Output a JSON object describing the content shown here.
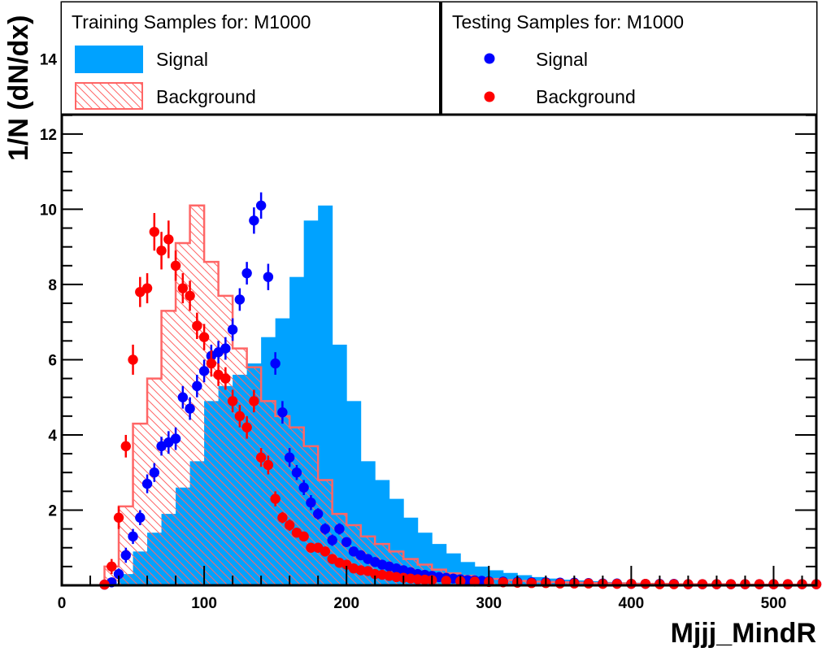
{
  "chart_data": {
    "type": "histogram",
    "xlabel": "Mjjj_MindR",
    "ylabel": "1/N (dN/dx)",
    "xlim": [
      0,
      530
    ],
    "ylim": [
      0,
      15.5
    ],
    "x_ticks": [
      0,
      100,
      200,
      300,
      400,
      500
    ],
    "y_ticks": [
      2,
      4,
      6,
      8,
      10,
      12,
      14
    ],
    "bin_width": 10,
    "legend": {
      "training_header": "Training Samples for: M1000",
      "testing_header": "Testing Samples for: M1000",
      "training_signal": "Signal",
      "training_background": "Background",
      "testing_signal": "Signal",
      "testing_background": "Background"
    },
    "colors": {
      "signal_fill": "#00a2ff",
      "background_line": "#ff6666",
      "signal_points": "#0000ff",
      "background_points": "#ff0000"
    },
    "series": [
      {
        "name": "Signal",
        "kind": "training-histogram",
        "bin_lefts": [
          0,
          10,
          20,
          30,
          40,
          50,
          60,
          70,
          80,
          90,
          100,
          110,
          120,
          130,
          140,
          150,
          160,
          170,
          180,
          190,
          200,
          210,
          220,
          230,
          240,
          250,
          260,
          270,
          280,
          290,
          300,
          310,
          320,
          330,
          340,
          350,
          360,
          370,
          380,
          390,
          400,
          410,
          420,
          430,
          440,
          450,
          460,
          470,
          480,
          490,
          500,
          510,
          520
        ],
        "values": [
          0,
          0,
          0,
          0.05,
          0.3,
          0.9,
          1.4,
          1.9,
          2.6,
          3.3,
          4.9,
          5.3,
          5.6,
          5.9,
          6.6,
          7.1,
          8.2,
          9.7,
          10.1,
          6.4,
          4.9,
          3.3,
          2.8,
          2.3,
          1.8,
          1.4,
          1.1,
          0.85,
          0.62,
          0.5,
          0.4,
          0.33,
          0.27,
          0.22,
          0.18,
          0.15,
          0.13,
          0.11,
          0.09,
          0.08,
          0.07,
          0.06,
          0.05,
          0.05,
          0.04,
          0.04,
          0.03,
          0.03,
          0.03,
          0.02,
          0.02,
          0.02,
          0.02
        ]
      },
      {
        "name": "Background",
        "kind": "training-histogram",
        "bin_lefts": [
          0,
          10,
          20,
          30,
          40,
          50,
          60,
          70,
          80,
          90,
          100,
          110,
          120,
          130,
          140,
          150,
          160,
          170,
          180,
          190,
          200,
          210,
          220,
          230,
          240,
          250,
          260,
          270,
          280,
          290,
          300,
          310,
          320,
          330,
          340,
          350,
          360,
          370,
          380,
          390,
          400,
          410,
          420,
          430,
          440,
          450,
          460,
          470,
          480,
          490,
          500,
          510,
          520
        ],
        "values": [
          0,
          0,
          0,
          0.5,
          2.1,
          4.3,
          5.5,
          7.3,
          9.1,
          10.1,
          8.6,
          7.7,
          6.3,
          5.8,
          4.9,
          4.5,
          4.2,
          3.7,
          2.8,
          1.9,
          1.6,
          1.3,
          1.1,
          0.9,
          0.7,
          0.55,
          0.42,
          0.32,
          0.25,
          0.2,
          0.17,
          0.14,
          0.12,
          0.1,
          0.09,
          0.08,
          0.07,
          0.06,
          0.05,
          0.05,
          0.04,
          0.04,
          0.04,
          0.03,
          0.03,
          0.03,
          0.03,
          0.02,
          0.02,
          0.02,
          0.02,
          0.02,
          0.02
        ]
      },
      {
        "name": "Signal",
        "kind": "testing-points",
        "x": [
          30,
          35,
          40,
          45,
          50,
          55,
          60,
          65,
          70,
          75,
          80,
          85,
          90,
          95,
          100,
          105,
          110,
          115,
          120,
          125,
          130,
          135,
          140,
          145,
          150,
          155,
          160,
          165,
          170,
          175,
          180,
          185,
          190,
          195,
          200,
          205,
          210,
          215,
          220,
          225,
          230,
          235,
          240,
          245,
          250,
          255,
          260,
          265,
          270,
          275,
          280,
          285,
          290,
          295,
          300,
          310,
          320,
          330,
          340,
          350,
          360,
          370,
          380,
          390,
          400,
          410,
          420,
          430,
          440,
          450,
          460,
          470,
          480,
          490,
          500,
          510,
          520,
          530
        ],
        "y": [
          0.02,
          0.08,
          0.3,
          0.8,
          1.3,
          1.8,
          2.7,
          3.0,
          3.7,
          3.8,
          3.9,
          5.0,
          4.7,
          5.3,
          5.7,
          6.1,
          6.2,
          6.3,
          6.8,
          7.6,
          8.3,
          9.7,
          10.1,
          8.2,
          5.9,
          4.6,
          3.4,
          3.0,
          2.6,
          2.2,
          1.9,
          1.5,
          1.2,
          1.5,
          1.15,
          0.9,
          0.8,
          0.7,
          0.62,
          0.55,
          0.5,
          0.45,
          0.4,
          0.35,
          0.3,
          0.28,
          0.25,
          0.22,
          0.2,
          0.18,
          0.16,
          0.14,
          0.13,
          0.12,
          0.11,
          0.1,
          0.09,
          0.08,
          0.08,
          0.07,
          0.07,
          0.06,
          0.05,
          0.05,
          0.04,
          0.04,
          0.04,
          0.04,
          0.03,
          0.03,
          0.03,
          0.03,
          0.03,
          0.03,
          0.03,
          0.03,
          0.03,
          0.03
        ],
        "errors": [
          0.05,
          0.1,
          0.15,
          0.2,
          0.2,
          0.2,
          0.25,
          0.25,
          0.25,
          0.3,
          0.3,
          0.3,
          0.3,
          0.3,
          0.3,
          0.3,
          0.3,
          0.3,
          0.3,
          0.3,
          0.3,
          0.35,
          0.35,
          0.35,
          0.3,
          0.3,
          0.25,
          0.2,
          0.2,
          0.2,
          0.15,
          0.15,
          0.15,
          0.15,
          0.1,
          0.1,
          0.1,
          0.1,
          0.1,
          0.1,
          0.1,
          0.1,
          0.05,
          0.05,
          0.05,
          0.05,
          0.05,
          0.05,
          0.05,
          0.05,
          0.05,
          0.05,
          0.05,
          0.05,
          0.05,
          0.05,
          0.05,
          0.05,
          0.05,
          0.05,
          0.05,
          0.05,
          0.05,
          0.05,
          0.05,
          0.05,
          0.05,
          0.05,
          0.05,
          0.05,
          0.05,
          0.05,
          0.05,
          0.05,
          0.05,
          0.05,
          0.05,
          0.05
        ]
      },
      {
        "name": "Background",
        "kind": "testing-points",
        "x": [
          30,
          35,
          40,
          45,
          50,
          55,
          60,
          65,
          70,
          75,
          80,
          85,
          90,
          95,
          100,
          105,
          110,
          115,
          120,
          125,
          130,
          135,
          140,
          145,
          150,
          155,
          160,
          165,
          170,
          175,
          180,
          185,
          190,
          195,
          200,
          205,
          210,
          215,
          220,
          225,
          230,
          235,
          240,
          245,
          250,
          255,
          260,
          270,
          280,
          290,
          300,
          310,
          320,
          330,
          340,
          350,
          360,
          370,
          380,
          390,
          400,
          410,
          420,
          430,
          440,
          450,
          460,
          470,
          480,
          490,
          500,
          510,
          520,
          530
        ],
        "y": [
          0.02,
          0.5,
          1.8,
          3.7,
          6.0,
          7.8,
          7.9,
          9.4,
          8.9,
          9.2,
          8.5,
          7.9,
          7.7,
          6.9,
          6.6,
          5.9,
          5.6,
          5.5,
          4.9,
          4.5,
          4.2,
          4.9,
          3.4,
          3.2,
          2.3,
          1.8,
          1.6,
          1.4,
          1.3,
          1.0,
          1.0,
          0.9,
          0.7,
          0.6,
          0.55,
          0.45,
          0.4,
          0.38,
          0.3,
          0.28,
          0.25,
          0.22,
          0.2,
          0.18,
          0.16,
          0.15,
          0.14,
          0.12,
          0.11,
          0.1,
          0.09,
          0.08,
          0.07,
          0.06,
          0.06,
          0.05,
          0.05,
          0.05,
          0.04,
          0.04,
          0.04,
          0.04,
          0.03,
          0.03,
          0.03,
          0.03,
          0.03,
          0.03,
          0.03,
          0.03,
          0.03,
          0.03,
          0.03,
          0.03
        ],
        "errors": [
          0.05,
          0.2,
          0.3,
          0.3,
          0.4,
          0.4,
          0.4,
          0.5,
          0.5,
          0.5,
          0.4,
          0.4,
          0.4,
          0.35,
          0.35,
          0.35,
          0.3,
          0.3,
          0.3,
          0.3,
          0.3,
          0.3,
          0.25,
          0.25,
          0.2,
          0.15,
          0.15,
          0.1,
          0.1,
          0.1,
          0.1,
          0.1,
          0.05,
          0.05,
          0.05,
          0.05,
          0.05,
          0.05,
          0.05,
          0.05,
          0.05,
          0.05,
          0.05,
          0.05,
          0.05,
          0.05,
          0.05,
          0.05,
          0.05,
          0.05,
          0.05,
          0.05,
          0.05,
          0.05,
          0.05,
          0.05,
          0.05,
          0.05,
          0.05,
          0.05,
          0.05,
          0.05,
          0.05,
          0.05,
          0.05,
          0.05,
          0.05,
          0.05,
          0.05,
          0.05,
          0.05,
          0.05,
          0.05,
          0.05
        ]
      }
    ]
  }
}
